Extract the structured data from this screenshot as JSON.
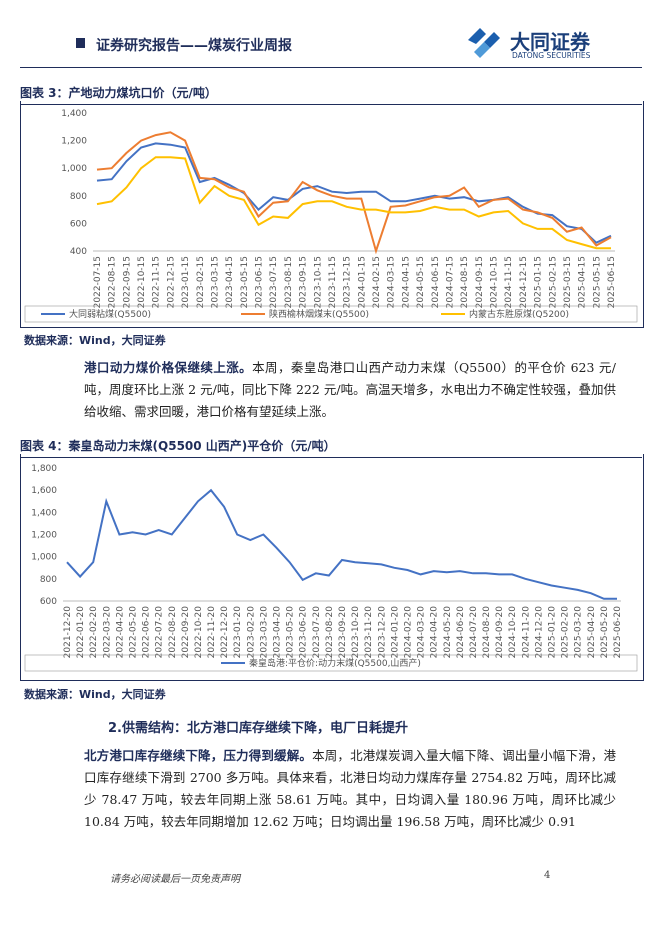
{
  "header": {
    "title": "证券研究报告——煤炭行业周报",
    "logo_cn": "大同证券",
    "logo_en": "DATONG SECURITIES"
  },
  "chart_data": [
    {
      "type": "line",
      "title": "图表 3：产地动力煤坑口价（元/吨）",
      "categories": [
        "2022-07-15",
        "2022-08-15",
        "2022-09-15",
        "2022-10-15",
        "2022-11-15",
        "2022-12-15",
        "2023-01-15",
        "2023-02-15",
        "2023-03-15",
        "2023-04-15",
        "2023-05-15",
        "2023-06-15",
        "2023-07-15",
        "2023-08-15",
        "2023-09-15",
        "2023-10-15",
        "2023-11-15",
        "2023-12-15",
        "2024-01-15",
        "2024-02-15",
        "2024-03-15",
        "2024-04-15",
        "2024-05-15",
        "2024-06-15",
        "2024-07-15",
        "2024-08-15",
        "2024-09-15",
        "2024-10-15",
        "2024-11-15",
        "2024-12-15",
        "2025-01-15",
        "2025-02-15",
        "2025-03-15",
        "2025-04-15",
        "2025-05-15",
        "2025-06-15"
      ],
      "series": [
        {
          "name": "大同弱粘煤(Q5500)",
          "color": "#4472c4",
          "values": [
            910,
            920,
            1050,
            1150,
            1180,
            1170,
            1150,
            900,
            930,
            880,
            820,
            700,
            790,
            770,
            850,
            870,
            830,
            820,
            830,
            830,
            760,
            760,
            780,
            800,
            780,
            790,
            760,
            770,
            790,
            720,
            670,
            660,
            580,
            560,
            460,
            510
          ]
        },
        {
          "name": "陕西榆林烟煤末(Q5500)",
          "color": "#ed7d31",
          "values": [
            990,
            1000,
            1110,
            1200,
            1240,
            1260,
            1200,
            930,
            920,
            860,
            830,
            650,
            750,
            760,
            900,
            840,
            800,
            780,
            780,
            400,
            720,
            730,
            760,
            790,
            800,
            860,
            720,
            770,
            780,
            700,
            680,
            640,
            540,
            570,
            440,
            500
          ]
        },
        {
          "name": "内蒙古东胜原煤(Q5200)",
          "color": "#ffc000",
          "values": [
            740,
            760,
            860,
            1000,
            1080,
            1080,
            1070,
            750,
            870,
            800,
            770,
            590,
            650,
            640,
            740,
            760,
            760,
            720,
            700,
            700,
            680,
            680,
            690,
            720,
            700,
            700,
            650,
            680,
            690,
            600,
            560,
            560,
            480,
            450,
            420,
            420
          ]
        }
      ],
      "ylim": [
        400,
        1400
      ],
      "yticks": [
        400,
        600,
        800,
        {
          "value": 1000,
          "label": "1,000"
        },
        {
          "value": 1200,
          "label": "1,200"
        },
        {
          "value": 1400,
          "label": "1,400"
        }
      ],
      "grid": false,
      "legend": "bottom"
    },
    {
      "type": "line",
      "title": "图表 4：秦皇岛动力末煤(Q5500 山西产)平仓价（元/吨）",
      "categories": [
        "2021-12-20",
        "2022-01-20",
        "2022-02-20",
        "2022-03-20",
        "2022-04-20",
        "2022-05-20",
        "2022-06-20",
        "2022-07-20",
        "2022-08-20",
        "2022-09-20",
        "2022-10-20",
        "2022-11-20",
        "2022-12-20",
        "2023-01-20",
        "2023-02-20",
        "2023-03-20",
        "2023-04-20",
        "2023-05-20",
        "2023-06-20",
        "2023-07-20",
        "2023-08-20",
        "2023-09-20",
        "2023-10-20",
        "2023-11-20",
        "2023-12-20",
        "2024-01-20",
        "2024-02-20",
        "2024-03-20",
        "2024-04-20",
        "2024-05-20",
        "2024-06-20",
        "2024-07-20",
        "2024-08-20",
        "2024-09-20",
        "2024-10-20",
        "2024-11-20",
        "2024-12-20",
        "2025-01-20",
        "2025-02-20",
        "2025-03-20",
        "2025-04-20",
        "2025-05-20",
        "2025-06-20"
      ],
      "series": [
        {
          "name": "秦皇岛港:平仓价:动力末煤(Q5500,山西产)",
          "color": "#4472c4",
          "values": [
            950,
            820,
            950,
            1500,
            1200,
            1220,
            1200,
            1240,
            1200,
            1350,
            1500,
            1600,
            1450,
            1200,
            1150,
            1200,
            1080,
            950,
            790,
            850,
            830,
            970,
            950,
            940,
            930,
            900,
            880,
            840,
            870,
            860,
            870,
            850,
            850,
            840,
            840,
            800,
            770,
            740,
            720,
            700,
            670,
            620,
            620
          ]
        }
      ],
      "ylim": [
        600,
        1800
      ],
      "yticks": [
        600,
        800,
        {
          "value": 1000,
          "label": "1,000"
        },
        {
          "value": 1200,
          "label": "1,200"
        },
        {
          "value": 1400,
          "label": "1,400"
        },
        {
          "value": 1600,
          "label": "1,600"
        },
        {
          "value": 1800,
          "label": "1,800"
        }
      ],
      "grid": false,
      "legend": "bottom"
    }
  ],
  "sources": [
    "数据来源：Wind，大同证券",
    "数据来源：Wind，大同证券"
  ],
  "paragraph1": {
    "bold": "港口动力煤价格保继续上涨。",
    "text": "本周，秦皇岛港口山西产动力末煤（Q5500）的平仓价 623 元/吨，周度环比上涨 2 元/吨，同比下降 222 元/吨。高温天增多，水电出力不确定性较强，叠加供给收缩、需求回暖，港口价格有望延续上涨。"
  },
  "heading": "2.供需结构：北方港口库存继续下降，电厂日耗提升",
  "paragraph2": {
    "bold": "北方港口库存继续下降，压力得到缓解。",
    "text": "本周，北港煤炭调入量大幅下降、调出量小幅下滑，港口库存继续下滑到 2700 多万吨。具体来看，北港日均动力煤库存量 2754.82 万吨，周环比减少 78.47 万吨，较去年同期上涨 58.61 万吨。其中，日均调入量 180.96 万吨，周环比减少 10.84 万吨，较去年同期增加 12.62 万吨；日均调出量 196.58 万吨，周环比减少 0.91"
  },
  "footer": {
    "note": "请务必阅读最后一页免责声明",
    "page": "4"
  }
}
